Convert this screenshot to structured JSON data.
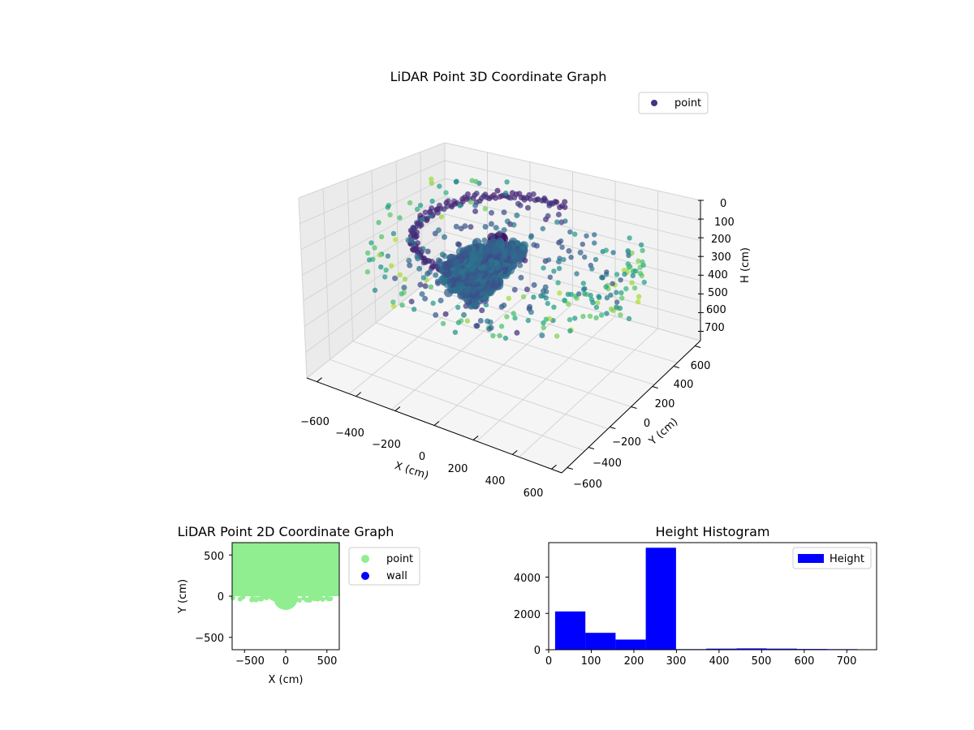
{
  "chart_data": [
    {
      "type": "scatter3d",
      "title": "LiDAR Point 3D Coordinate Graph",
      "xlabel": "X (cm)",
      "ylabel": "Y (cm)",
      "zlabel": "H (cm)",
      "xticks": [
        "−600",
        "−400",
        "−200",
        "0",
        "200",
        "400",
        "600"
      ],
      "yticks": [
        "600",
        "400",
        "200",
        "0",
        "−200",
        "−400",
        "−600"
      ],
      "zticks": [
        "0",
        "100",
        "200",
        "300",
        "400",
        "500",
        "600",
        "700"
      ],
      "xlim": [
        -650,
        650
      ],
      "ylim": [
        -650,
        650
      ],
      "zlim": [
        0,
        750
      ],
      "zaxis_inverted": true,
      "colormap": "viridis",
      "legend": {
        "position": "top-right",
        "entries": [
          "point"
        ]
      },
      "colors": {
        "legend_marker": "#46337e"
      }
    },
    {
      "type": "scatter",
      "title": "LiDAR Point 2D Coordinate Graph",
      "xlabel": "X (cm)",
      "ylabel": "Y (cm)",
      "xticks": [
        "−500",
        "0",
        "500"
      ],
      "yticks": [
        "500",
        "0",
        "−500"
      ],
      "xlim": [
        -650,
        650
      ],
      "ylim": [
        -650,
        650
      ],
      "legend": {
        "position": "outside-right",
        "entries": [
          "point",
          "wall"
        ]
      },
      "series": [
        {
          "name": "point",
          "color": "#90ee90"
        },
        {
          "name": "wall",
          "color": "#0000ff"
        }
      ]
    },
    {
      "type": "bar",
      "title": "Height Histogram",
      "xticks": [
        "0",
        "100",
        "200",
        "300",
        "400",
        "500",
        "600",
        "700"
      ],
      "yticks": [
        "0",
        "2000",
        "4000"
      ],
      "xlim": [
        0,
        770
      ],
      "ylim": [
        0,
        5900
      ],
      "legend": {
        "position": "top-right",
        "entries": [
          "Height"
        ]
      },
      "color": "#0000ff",
      "bin_edges": [
        15,
        86,
        157,
        228,
        299,
        370,
        441,
        512,
        583,
        654,
        725
      ],
      "values": [
        2110,
        930,
        560,
        5620,
        30,
        60,
        70,
        60,
        40,
        30
      ]
    }
  ]
}
